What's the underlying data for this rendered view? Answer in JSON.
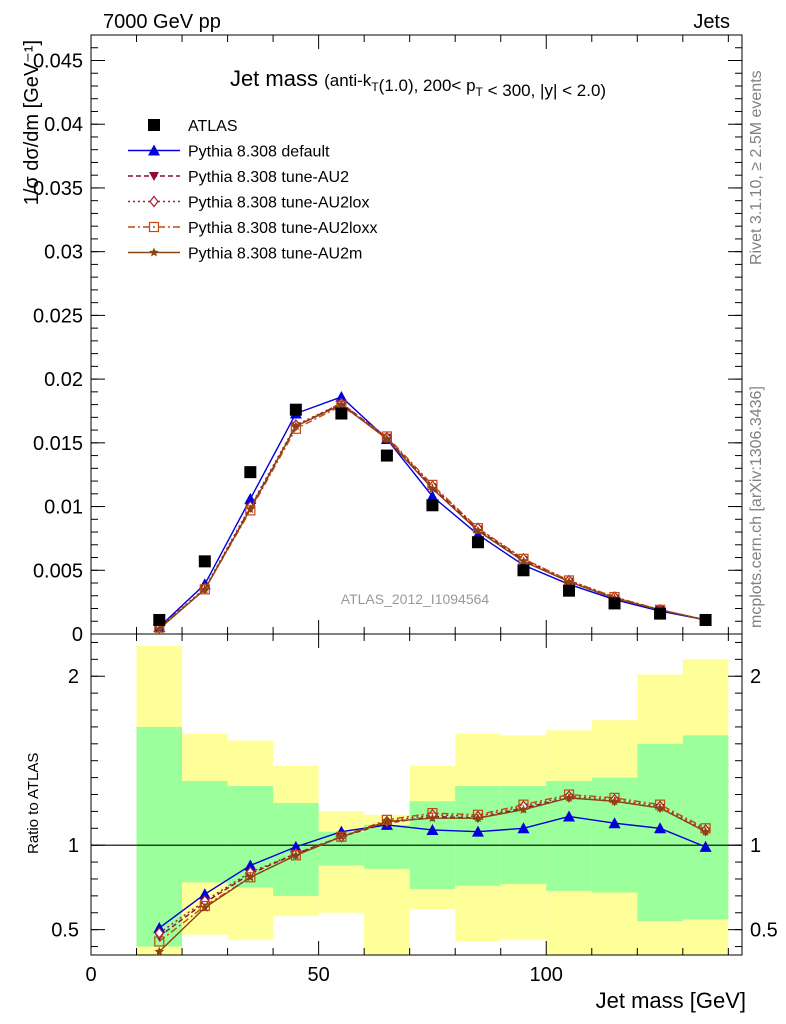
{
  "header": {
    "left": "7000 GeV pp",
    "right": "Jets"
  },
  "side_text": {
    "rivet": "Rivet 3.1.10, ≥ 2.5M events",
    "mcplots": "mcplots.cern.ch [arXiv:1306.3436]"
  },
  "chart_data": {
    "type": "line",
    "title": "Jet mass",
    "subtitle": "(anti-k_T(1.0), 200< p_T < 300, |y| < 2.0)",
    "watermark": "ATLAS_2012_I1094564",
    "xlabel": "Jet mass [GeV]",
    "ylabel_main": "1/σ dσ/dm [GeV⁻¹]",
    "ylabel_ratio": "Ratio to ATLAS",
    "xlim": [
      0,
      143
    ],
    "ylim_main": [
      0,
      0.047
    ],
    "ylim_ratio": [
      0.35,
      2.25
    ],
    "x_ticks": [
      0,
      50,
      100
    ],
    "x_tick_labels": [
      "0",
      "50",
      "100"
    ],
    "y_ticks_main": [
      0,
      0.005,
      0.01,
      0.015,
      0.02,
      0.025,
      0.03,
      0.035,
      0.04,
      0.045
    ],
    "y_tick_labels_main": [
      "0",
      "0.005",
      "0.01",
      "0.015",
      "0.02",
      "0.025",
      "0.03",
      "0.035",
      "0.04",
      "0.045"
    ],
    "y_ticks_ratio": [
      0.5,
      1,
      2
    ],
    "y_tick_labels_ratio": [
      "0.5",
      "1",
      "2"
    ],
    "bin_edges": [
      10,
      20,
      30,
      40,
      50,
      60,
      70,
      80,
      90,
      100,
      110,
      120,
      130,
      140
    ],
    "x": [
      15,
      25,
      35,
      45,
      55,
      65,
      75,
      85,
      95,
      105,
      115,
      125,
      135
    ],
    "data": {
      "name": "ATLAS",
      "values": [
        0.0011,
        0.0057,
        0.0127,
        0.0176,
        0.0173,
        0.014,
        0.0101,
        0.0072,
        0.005,
        0.0034,
        0.0024,
        0.0016,
        0.0011
      ]
    },
    "ratio_band_inner": [
      [
        0.4,
        1.7
      ],
      [
        0.78,
        1.38
      ],
      [
        0.75,
        1.35
      ],
      [
        0.7,
        1.25
      ],
      [
        0.88,
        1.08
      ],
      [
        0.86,
        1.12
      ],
      [
        0.74,
        1.26
      ],
      [
        0.76,
        1.35
      ],
      [
        0.77,
        1.35
      ],
      [
        0.73,
        1.38
      ],
      [
        0.72,
        1.4
      ],
      [
        0.55,
        1.6
      ],
      [
        0.56,
        1.65
      ]
    ],
    "ratio_band_outer": [
      [
        0.35,
        2.18
      ],
      [
        0.47,
        1.66
      ],
      [
        0.44,
        1.62
      ],
      [
        0.58,
        1.47
      ],
      [
        0.6,
        1.2
      ],
      [
        0.35,
        1.18
      ],
      [
        0.62,
        1.47
      ],
      [
        0.43,
        1.66
      ],
      [
        0.44,
        1.65
      ],
      [
        0.35,
        1.68
      ],
      [
        0.35,
        1.74
      ],
      [
        0.35,
        2.01
      ],
      [
        0.35,
        2.1
      ]
    ],
    "series": [
      {
        "name": "Pythia 8.308 default",
        "color": "#0000dd",
        "dash": "",
        "marker": "triangle-up",
        "values": [
          0.00055,
          0.0039,
          0.0106,
          0.0173,
          0.0186,
          0.0153,
          0.0108,
          0.0078,
          0.0054,
          0.0039,
          0.0027,
          0.0018,
          0.0011
        ],
        "ratio": [
          0.51,
          0.71,
          0.88,
          0.99,
          1.08,
          1.12,
          1.09,
          1.08,
          1.1,
          1.17,
          1.13,
          1.1,
          0.99
        ]
      },
      {
        "name": "Pythia 8.308 tune-AU2",
        "color": "#8b0a3c",
        "dash": "5,3",
        "marker": "triangle-down",
        "values": [
          0.0005,
          0.0035,
          0.0099,
          0.0163,
          0.0181,
          0.0154,
          0.0115,
          0.0082,
          0.0058,
          0.0041,
          0.0028,
          0.0019,
          0.0011
        ],
        "ratio": [
          0.46,
          0.66,
          0.83,
          0.95,
          1.05,
          1.13,
          1.17,
          1.16,
          1.22,
          1.28,
          1.26,
          1.22,
          1.08
        ]
      },
      {
        "name": "Pythia 8.308 tune-AU2lox",
        "color": "#a02030",
        "dash": "2,3",
        "marker": "diamond",
        "values": [
          0.0005,
          0.0036,
          0.01,
          0.0164,
          0.0181,
          0.0154,
          0.0116,
          0.0083,
          0.0059,
          0.0042,
          0.0029,
          0.0019,
          0.0011
        ],
        "ratio": [
          0.48,
          0.67,
          0.84,
          0.95,
          1.05,
          1.14,
          1.18,
          1.17,
          1.23,
          1.29,
          1.27,
          1.23,
          1.09
        ]
      },
      {
        "name": "Pythia 8.308 tune-AU2loxx",
        "color": "#c04a10",
        "dash": "7,3,2,3",
        "marker": "square-open",
        "values": [
          0.0005,
          0.0035,
          0.0097,
          0.0161,
          0.0179,
          0.0155,
          0.0117,
          0.0083,
          0.0059,
          0.0042,
          0.0029,
          0.0019,
          0.0011
        ],
        "ratio": [
          0.43,
          0.64,
          0.81,
          0.94,
          1.05,
          1.15,
          1.19,
          1.18,
          1.24,
          1.3,
          1.28,
          1.24,
          1.1
        ]
      },
      {
        "name": "Pythia 8.308 tune-AU2m",
        "color": "#8b4513",
        "dash": "",
        "marker": "star",
        "values": [
          0.0004,
          0.0035,
          0.0098,
          0.0163,
          0.018,
          0.0153,
          0.0114,
          0.0081,
          0.0057,
          0.0041,
          0.0028,
          0.0019,
          0.0011
        ],
        "ratio": [
          0.37,
          0.63,
          0.81,
          0.94,
          1.05,
          1.14,
          1.16,
          1.16,
          1.21,
          1.28,
          1.26,
          1.22,
          1.08
        ]
      }
    ]
  }
}
